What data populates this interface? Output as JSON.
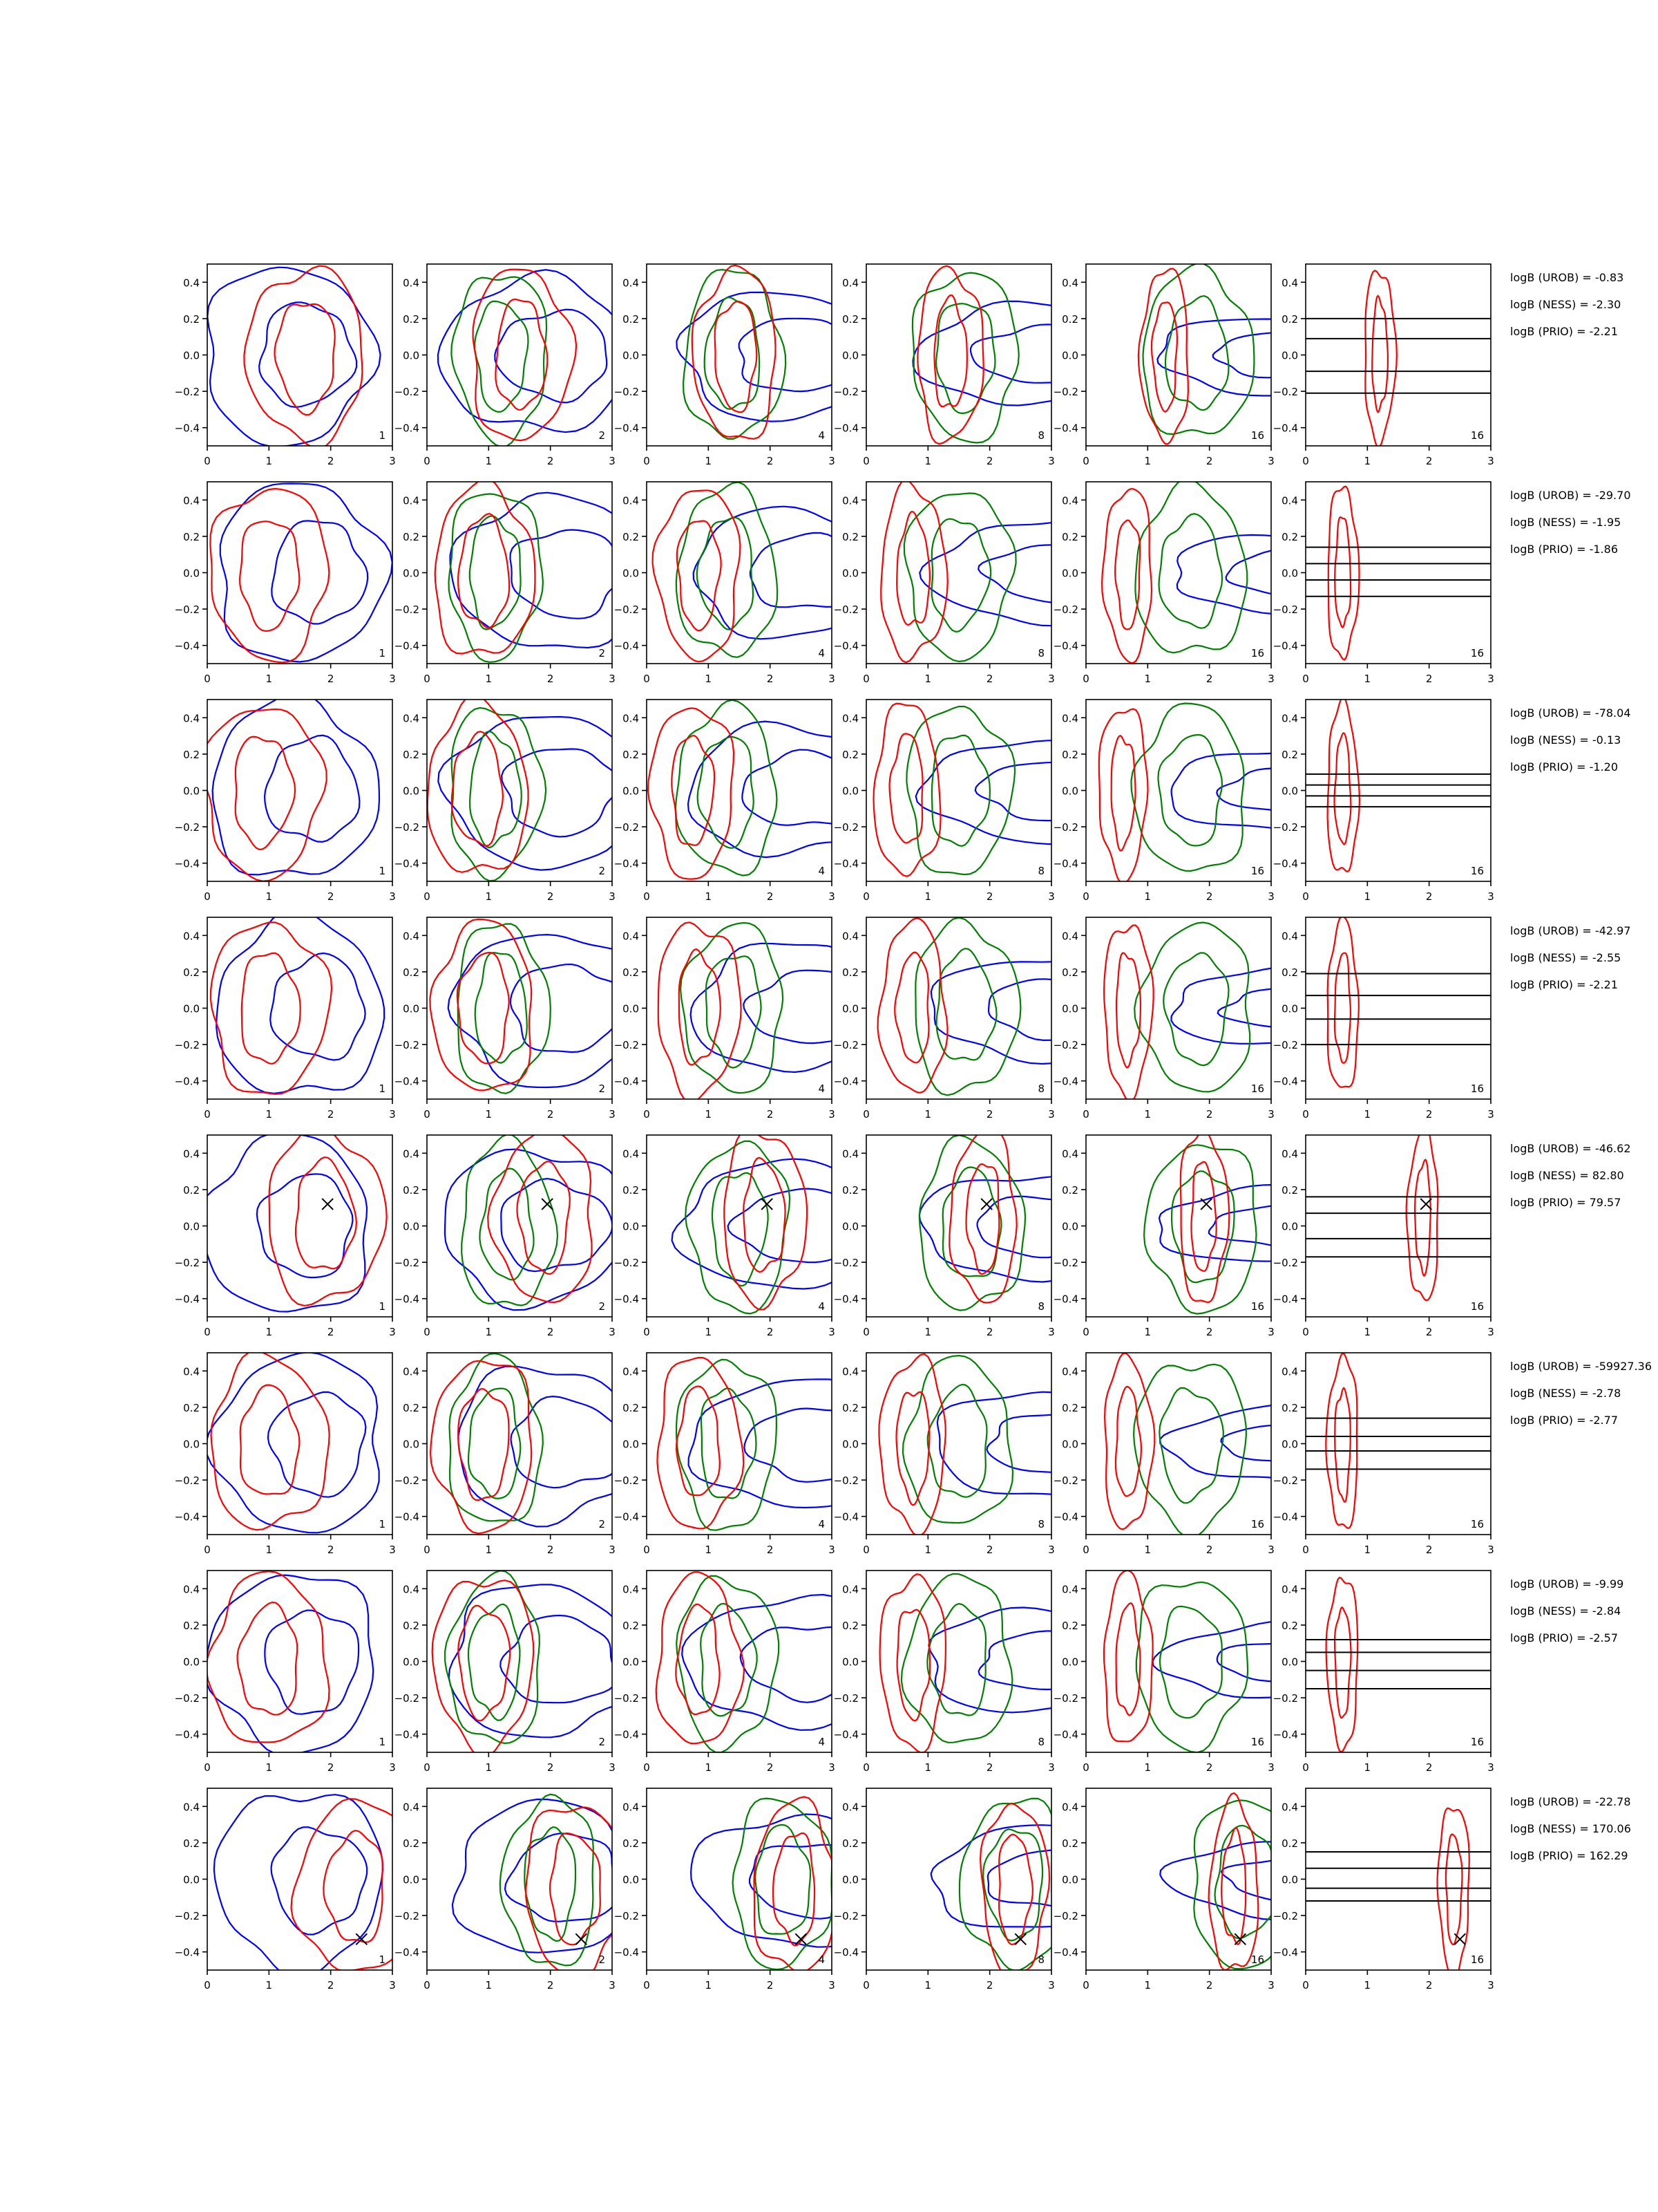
{
  "chart_data": {
    "type": "contour",
    "description_grid": "8 rows x 6 columns of contour subplots",
    "x_ticks": [
      "0",
      "1",
      "2",
      "3"
    ],
    "y_ticks": [
      "−0.4",
      "−0.2",
      "0.0",
      "0.2",
      "0.4"
    ],
    "xlim": [
      0,
      3
    ],
    "ylim": [
      -0.5,
      0.5
    ],
    "panel_labels": [
      "1",
      "2",
      "4",
      "8",
      "16",
      "16"
    ],
    "series_colors": {
      "blue": "#0000ff",
      "red": "#ff0000",
      "green": "#008000",
      "black": "#000000"
    },
    "rows": [
      {
        "annotations": [
          "logB (UROB) = -0.83",
          "logB (NESS) = -2.30",
          "logB (PRIO) = -2.21"
        ],
        "marker": null,
        "red_center": [
          1.6,
          0.0
        ],
        "blue_center": [
          1.3,
          0.0
        ],
        "green_center": [
          1.2,
          0.0
        ],
        "lines_y": [
          0.2,
          0.09,
          -0.09,
          -0.21
        ]
      },
      {
        "annotations": [
          "logB (UROB) = -29.70",
          "logB (NESS) = -1.95",
          "logB (PRIO) = -1.86"
        ],
        "marker": null,
        "red_center": [
          1.0,
          0.0
        ],
        "blue_center": [
          1.5,
          0.0
        ],
        "green_center": [
          1.1,
          0.0
        ],
        "lines_y": [
          0.14,
          0.05,
          -0.04,
          -0.13
        ]
      },
      {
        "annotations": [
          "logB (UROB) = -78.04",
          "logB (NESS) = -0.13",
          "logB (PRIO) = -1.20"
        ],
        "marker": null,
        "red_center": [
          0.9,
          0.0
        ],
        "blue_center": [
          1.4,
          0.0
        ],
        "green_center": [
          1.1,
          0.0
        ],
        "lines_y": [
          0.09,
          0.03,
          -0.03,
          -0.09
        ]
      },
      {
        "annotations": [
          "logB (UROB) = -42.97",
          "logB (NESS) = -2.55",
          "logB (PRIO) = -2.21"
        ],
        "marker": null,
        "red_center": [
          1.0,
          0.0
        ],
        "blue_center": [
          1.5,
          0.0
        ],
        "green_center": [
          1.2,
          0.0
        ],
        "lines_y": [
          0.19,
          0.07,
          -0.06,
          -0.2
        ]
      },
      {
        "annotations": [
          "logB (UROB) = -46.62",
          "logB (NESS) = 82.80",
          "logB (PRIO) = 79.57"
        ],
        "marker": [
          1.95,
          0.12
        ],
        "red_center": [
          1.9,
          0.05
        ],
        "blue_center": [
          1.3,
          0.0
        ],
        "green_center": [
          1.3,
          0.0
        ],
        "lines_y": [
          0.16,
          0.07,
          -0.07,
          -0.17
        ]
      },
      {
        "annotations": [
          "logB (UROB) = -59927.36",
          "logB (NESS) = -2.78",
          "logB (PRIO) = -2.77"
        ],
        "marker": null,
        "red_center": [
          1.0,
          0.0
        ],
        "blue_center": [
          1.5,
          0.0
        ],
        "green_center": [
          1.1,
          0.0
        ],
        "lines_y": [
          0.14,
          0.04,
          -0.04,
          -0.14
        ]
      },
      {
        "annotations": [
          "logB (UROB) = -9.99",
          "logB (NESS) = -2.84",
          "logB (PRIO) = -2.57"
        ],
        "marker": null,
        "red_center": [
          1.0,
          0.0
        ],
        "blue_center": [
          1.4,
          0.0
        ],
        "green_center": [
          1.1,
          0.0
        ],
        "lines_y": [
          0.12,
          0.05,
          -0.05,
          -0.15
        ]
      },
      {
        "annotations": [
          "logB (UROB) = -22.78",
          "logB (NESS) = 170.06",
          "logB (PRIO) = 162.29"
        ],
        "marker": [
          2.5,
          -0.33
        ],
        "red_center": [
          2.4,
          -0.05
        ],
        "blue_center": [
          1.5,
          0.0
        ],
        "green_center": [
          2.0,
          -0.02
        ],
        "lines_y": [
          0.15,
          0.06,
          -0.05,
          -0.12
        ]
      }
    ]
  }
}
